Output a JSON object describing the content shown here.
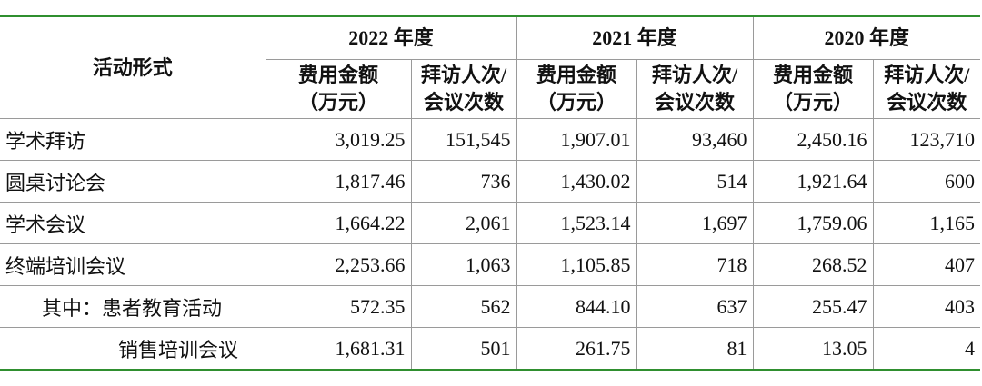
{
  "table": {
    "header": {
      "activity": "活动形式",
      "years": [
        "2022 年度",
        "2021 年度",
        "2020 年度"
      ],
      "columns": [
        [
          "费用金额",
          "（万元）"
        ],
        [
          "拜访人次/",
          "会议次数"
        ]
      ]
    },
    "rows": [
      [
        "学术拜访",
        "3,019.25",
        "151,545",
        "1,907.01",
        "93,460",
        "2,450.16",
        "123,710"
      ],
      [
        "圆桌讨论会",
        "1,817.46",
        "736",
        "1,430.02",
        "514",
        "1,921.64",
        "600"
      ],
      [
        "学术会议",
        "1,664.22",
        "2,061",
        "1,523.14",
        "1,697",
        "1,759.06",
        "1,165"
      ],
      [
        "终端培训会议",
        "2,253.66",
        "1,063",
        "1,105.85",
        "718",
        "268.52",
        "407"
      ],
      [
        "其中：患者教育活动",
        "572.35",
        "562",
        "844.10",
        "637",
        "255.47",
        "403"
      ],
      [
        "销售培训会议",
        "1,681.31",
        "501",
        "261.75",
        "81",
        "13.05",
        "4"
      ]
    ]
  }
}
